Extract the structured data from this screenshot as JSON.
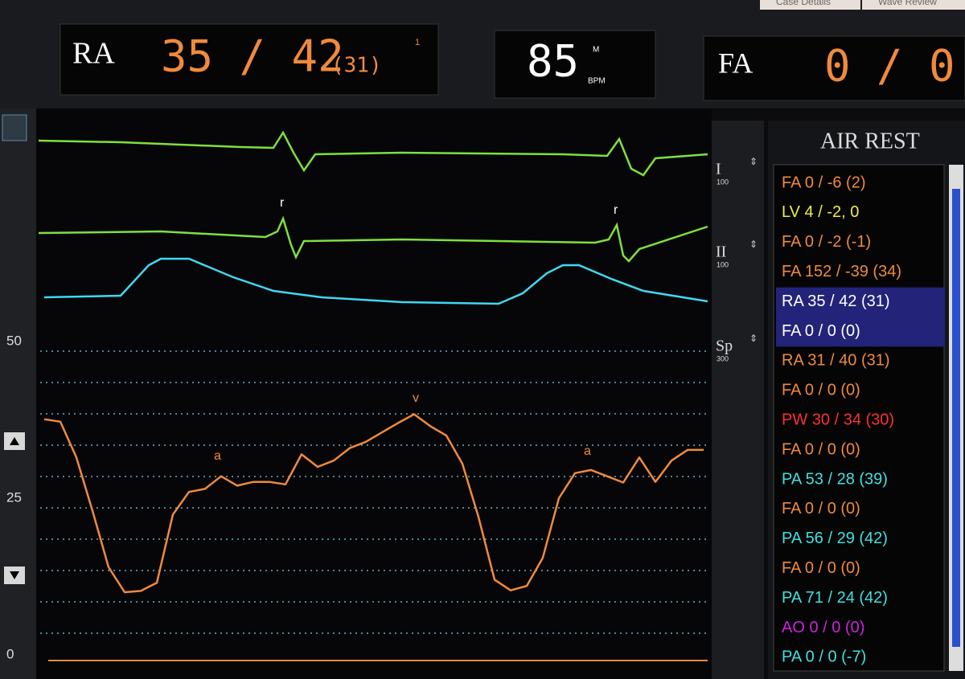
{
  "tabs": [
    "Case Details",
    "Wave Review"
  ],
  "header": {
    "site": "RA",
    "pressure": "35 / 42",
    "mean": "(31)",
    "index": "1",
    "heart_rate": "85",
    "hr_flag": "M",
    "hr_unit": "BPM",
    "site2": "FA",
    "pressure2": "0 / 0"
  },
  "leads": [
    {
      "name": "I",
      "scale": "100"
    },
    {
      "name": "II",
      "scale": "100"
    },
    {
      "name": "Sp",
      "scale": "300"
    }
  ],
  "ecg_markers": [
    "r",
    "r"
  ],
  "pressure": {
    "ylim": [
      0,
      50
    ],
    "yticks": [
      0,
      25,
      50
    ],
    "gridlines": [
      50,
      45,
      40,
      35,
      30,
      25,
      20,
      15,
      10,
      5
    ],
    "color": "#f08a3c",
    "values": [
      37.6,
      37.2,
      31.5,
      23,
      14,
      10,
      10.2,
      11.5,
      22.4,
      26,
      26.5,
      28.5,
      27,
      27.6,
      27.6,
      27.2,
      32,
      30,
      31,
      33,
      34,
      35.5,
      37,
      38.4,
      36.5,
      35,
      30.5,
      22,
      12,
      10.3,
      11,
      15.5,
      25,
      29,
      29.5,
      28.5,
      27.5,
      31.5,
      27.6,
      31,
      32.7,
      32.7
    ],
    "annotations": [
      "a",
      "v",
      "a"
    ]
  },
  "list": {
    "title": "AIR REST",
    "items": [
      {
        "text": "FA 0 / -6 (2)",
        "color": "#f08a3c"
      },
      {
        "text": "LV 4 / -2, 0",
        "color": "#f0f040"
      },
      {
        "text": "FA 0 / -2 (-1)",
        "color": "#f08a3c"
      },
      {
        "text": "FA 152 / -39 (34)",
        "color": "#f08a3c"
      },
      {
        "text": "RA 35 / 42 (31)",
        "color": "#ffffff",
        "selected": true
      },
      {
        "text": "FA 0 / 0 (0)",
        "color": "#ffffff",
        "selected": true
      },
      {
        "text": "RA 31 / 40 (31)",
        "color": "#f08a3c"
      },
      {
        "text": "FA 0 / 0 (0)",
        "color": "#f08a3c"
      },
      {
        "text": "PW 30 / 34 (30)",
        "color": "#ff3030"
      },
      {
        "text": "FA 0 / 0 (0)",
        "color": "#f08a3c"
      },
      {
        "text": "PA 53 / 28 (39)",
        "color": "#40e0e0"
      },
      {
        "text": "FA 0 / 0 (0)",
        "color": "#f08a3c"
      },
      {
        "text": "PA 56 / 29 (42)",
        "color": "#40e0e0"
      },
      {
        "text": "FA 0 / 0 (0)",
        "color": "#f08a3c"
      },
      {
        "text": "PA 71 / 24 (42)",
        "color": "#40e0e0"
      },
      {
        "text": "AO 0 / 0 (0)",
        "color": "#d020e0"
      },
      {
        "text": "PA 0 / 0 (-7)",
        "color": "#40e0e0"
      }
    ]
  }
}
